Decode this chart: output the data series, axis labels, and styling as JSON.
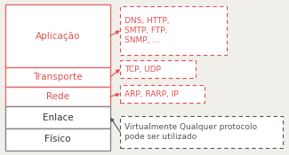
{
  "layers": [
    {
      "label": "Aplicação",
      "border": "#e07070",
      "bg": "#ffffff",
      "text_color": "#e05050",
      "is_red": true
    },
    {
      "label": "Transporte",
      "border": "#e07070",
      "bg": "#ffffff",
      "text_color": "#e05050",
      "is_red": true
    },
    {
      "label": "Rede",
      "border": "#e07070",
      "bg": "#ffffff",
      "text_color": "#e05050",
      "is_red": true
    },
    {
      "label": "Enlace",
      "border": "#888888",
      "bg": "#ffffff",
      "text_color": "#333333",
      "is_red": false
    },
    {
      "label": "Físico",
      "border": "#888888",
      "bg": "#ffffff",
      "text_color": "#333333",
      "is_red": false
    }
  ],
  "annotations": [
    {
      "text": "DNS, HTTP,\nSMTP, FTP,\nSNMP, ...",
      "color": "#e05050",
      "gray": false
    },
    {
      "text": "TCP, UDP",
      "color": "#e05050",
      "gray": false
    },
    {
      "text": "ARP, RARP, IP",
      "color": "#e05050",
      "gray": false
    },
    {
      "text": "Virtualmente Qualquer protocolo\npode ser utilizado",
      "color": "#555555",
      "gray": true
    }
  ],
  "bg_color": "#f0efea",
  "fig_width": 3.25,
  "fig_height": 1.75,
  "dpi": 100
}
